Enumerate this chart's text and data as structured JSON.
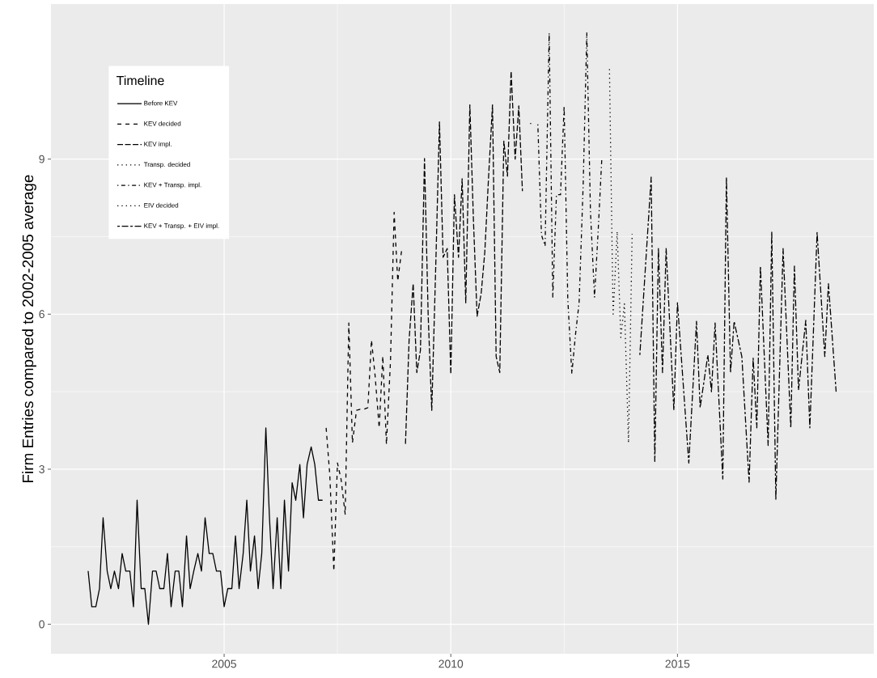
{
  "chart_data": {
    "type": "line",
    "ylabel": "Firm Entries compared to 2002-2005 average",
    "legend_title": "Timeline",
    "legend": "top left",
    "grid": true,
    "xlim": [
      2001.18,
      2019.33
    ],
    "ylim": [
      -0.57,
      12.0
    ],
    "xticks": [
      2005,
      2010,
      2015
    ],
    "yticks": [
      0,
      3,
      6,
      9
    ],
    "series": [
      {
        "name": "Before KEV",
        "color": "#000000",
        "line_style": "solid",
        "x": [
          2002.0,
          2002.08,
          2002.17,
          2002.25,
          2002.33,
          2002.42,
          2002.5,
          2002.58,
          2002.67,
          2002.75,
          2002.83,
          2002.92,
          2003.0,
          2003.08,
          2003.17,
          2003.25,
          2003.33,
          2003.42,
          2003.5,
          2003.58,
          2003.67,
          2003.75,
          2003.83,
          2003.92,
          2004.0,
          2004.08,
          2004.17,
          2004.25,
          2004.33,
          2004.42,
          2004.5,
          2004.58,
          2004.67,
          2004.75,
          2004.83,
          2004.92,
          2005.0,
          2005.08,
          2005.17,
          2005.25,
          2005.33,
          2005.42,
          2005.5,
          2005.58,
          2005.67,
          2005.75,
          2005.83,
          2005.92,
          2006.0,
          2006.08,
          2006.17,
          2006.25,
          2006.33,
          2006.42,
          2006.5,
          2006.58,
          2006.67,
          2006.75,
          2006.83,
          2006.92,
          2007.0,
          2007.08,
          2007.17
        ],
        "values": [
          1.03,
          0.34,
          0.34,
          0.69,
          2.06,
          1.03,
          0.69,
          1.03,
          0.69,
          1.37,
          1.03,
          1.03,
          0.34,
          2.4,
          0.69,
          0.69,
          0,
          1.03,
          1.03,
          0.69,
          0.69,
          1.37,
          0.34,
          1.03,
          1.03,
          0.34,
          1.71,
          0.69,
          1.03,
          1.37,
          1.03,
          2.06,
          1.37,
          1.37,
          1.03,
          1.03,
          0.34,
          0.69,
          0.69,
          1.71,
          0.69,
          1.37,
          2.4,
          1.03,
          1.71,
          0.69,
          1.37,
          3.8,
          2.06,
          0.69,
          2.06,
          0.69,
          2.4,
          1.03,
          2.74,
          2.4,
          3.09,
          2.06,
          3.09,
          3.43,
          3.09,
          2.4,
          2.4
        ]
      },
      {
        "name": "KEV decided",
        "color": "#000000",
        "line_style": "dashed",
        "x": [
          2007.25,
          2007.33,
          2007.42,
          2007.5,
          2007.58,
          2007.67,
          2007.75,
          2007.83,
          2007.92,
          2008.0,
          2008.08,
          2008.17,
          2008.25,
          2008.33,
          2008.42,
          2008.5,
          2008.58,
          2008.67,
          2008.75,
          2008.83,
          2008.92
        ],
        "values": [
          3.8,
          2.9,
          1.03,
          3.12,
          2.8,
          2.13,
          5.83,
          3.51,
          4.14,
          4.16,
          4.16,
          4.19,
          5.5,
          4.81,
          3.8,
          5.19,
          3.48,
          5.1,
          7.97,
          6.64,
          7.27
        ]
      },
      {
        "name": "KEV impl.",
        "color": "#000000",
        "line_style": "longdash",
        "x": [
          2009.0,
          2009.08,
          2009.17,
          2009.25,
          2009.33,
          2009.42,
          2009.5,
          2009.58,
          2009.67,
          2009.75,
          2009.83,
          2009.92,
          2010.0,
          2010.08,
          2010.17,
          2010.25,
          2010.33,
          2010.42,
          2010.5,
          2010.58,
          2010.67,
          2010.75,
          2010.83,
          2010.92,
          2011.0,
          2011.08,
          2011.17,
          2011.25,
          2011.33,
          2011.42,
          2011.5,
          2011.58
        ],
        "values": [
          3.49,
          5.5,
          6.59,
          4.87,
          5.3,
          9.01,
          6.0,
          4.14,
          7.0,
          9.72,
          7.1,
          7.27,
          4.84,
          8.31,
          7.1,
          8.62,
          6.22,
          10.05,
          7.8,
          5.96,
          6.4,
          7.2,
          8.6,
          10.05,
          5.18,
          4.87,
          9.35,
          8.67,
          10.7,
          9.0,
          10.03,
          8.38
        ]
      },
      {
        "name": "Transp. decided",
        "color": "#000000",
        "line_style": "dotted",
        "x": [
          2011.75,
          2011.83
        ],
        "values": [
          9.69,
          9.69
        ]
      },
      {
        "name": "KEV + Transp. impl.",
        "color": "#000000",
        "line_style": "dotdash",
        "x": [
          2011.92,
          2012.0,
          2012.08,
          2012.17,
          2012.25,
          2012.33,
          2012.42,
          2012.5,
          2012.58,
          2012.67,
          2012.75,
          2012.83,
          2012.92,
          2013.0,
          2013.08,
          2013.17,
          2013.25,
          2013.33
        ],
        "values": [
          9.67,
          7.53,
          7.32,
          11.44,
          6.33,
          8.31,
          8.31,
          10.03,
          6.3,
          4.85,
          5.6,
          6.22,
          8.5,
          11.44,
          8.0,
          6.33,
          7.6,
          8.99
        ]
      },
      {
        "name": "EIV decided",
        "color": "#000000",
        "line_style": "dotted",
        "x": [
          2013.5,
          2013.58,
          2013.67,
          2013.75,
          2013.83,
          2013.92,
          2014.0
        ],
        "values": [
          10.74,
          5.96,
          7.6,
          5.55,
          6.2,
          3.51,
          7.55
        ]
      },
      {
        "name": "KEV + Transp. + EIV impl.",
        "color": "#000000",
        "line_style": "twodash",
        "x": [
          2014.17,
          2014.42,
          2014.5,
          2014.58,
          2014.67,
          2014.75,
          2014.92,
          2015.0,
          2015.25,
          2015.42,
          2015.5,
          2015.67,
          2015.75,
          2015.83,
          2016.0,
          2016.08,
          2016.17,
          2016.25,
          2016.42,
          2016.58,
          2016.67,
          2016.75,
          2016.83,
          2017.0,
          2017.08,
          2017.17,
          2017.33,
          2017.5,
          2017.58,
          2017.67,
          2017.83,
          2017.92,
          2018.08,
          2018.25,
          2018.33,
          2018.5
        ],
        "values": [
          5.21,
          8.65,
          3.15,
          7.27,
          4.87,
          7.27,
          4.14,
          6.22,
          3.12,
          5.86,
          4.19,
          5.21,
          4.5,
          5.83,
          2.81,
          8.65,
          4.87,
          5.86,
          5.18,
          2.75,
          5.15,
          3.8,
          6.93,
          3.46,
          7.6,
          2.42,
          7.27,
          3.8,
          6.93,
          4.53,
          5.88,
          3.8,
          7.58,
          5.18,
          6.59,
          4.5
        ]
      }
    ]
  }
}
